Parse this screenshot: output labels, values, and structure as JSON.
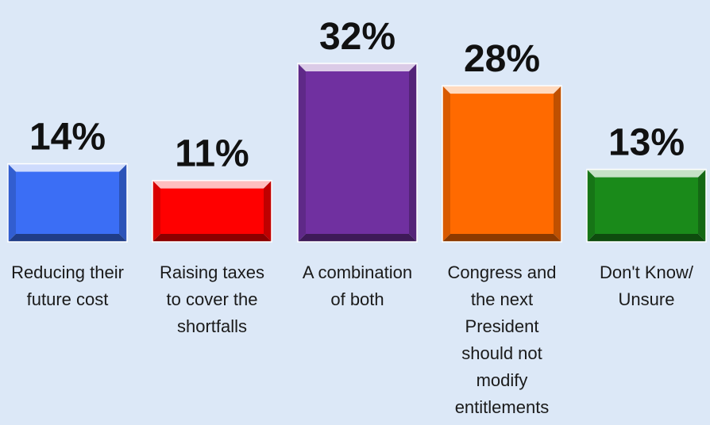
{
  "chart_data": {
    "type": "bar",
    "categories": [
      "Reducing their\nfuture cost",
      "Raising taxes\nto cover the\nshortfalls",
      "A combination\nof both",
      "Congress and\nthe next\nPresident\nshould not\nmodify\nentitlements",
      "Don't Know/\nUnsure"
    ],
    "values": [
      14,
      11,
      32,
      28,
      13
    ],
    "data_labels": [
      "14%",
      "11%",
      "32%",
      "28%",
      "13%"
    ],
    "colors": [
      "#3b6ef5",
      "#ff0000",
      "#7030a0",
      "#ff6a00",
      "#1a8a1a"
    ],
    "title": "",
    "xlabel": "",
    "ylabel": "",
    "ylim": [
      0,
      32
    ],
    "grid": false,
    "legend": "none"
  }
}
